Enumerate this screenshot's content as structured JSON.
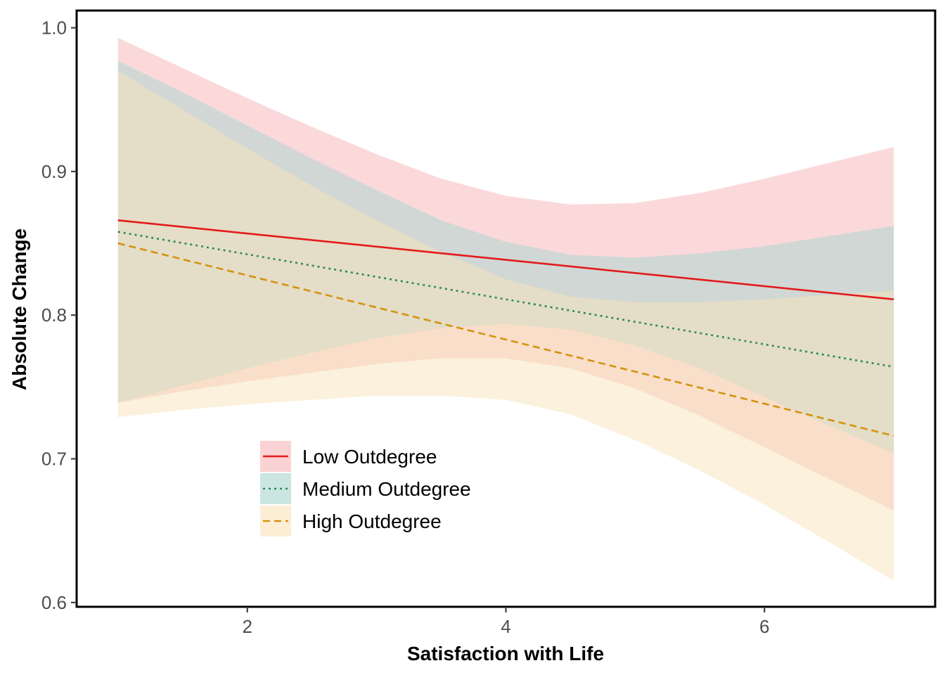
{
  "chart_data": {
    "type": "line",
    "title": "",
    "xlabel": "Satisfaction with Life",
    "ylabel": "Absolute Change",
    "xlim": [
      0.68,
      7.32
    ],
    "ylim": [
      0.597,
      1.012
    ],
    "xticks": [
      2,
      4,
      6
    ],
    "xtick_labels": [
      "2",
      "4",
      "6"
    ],
    "yticks": [
      0.6,
      0.7,
      0.8,
      0.9,
      1.0
    ],
    "ytick_labels": [
      "0.6",
      "0.7",
      "0.8",
      "0.9",
      "1.0"
    ],
    "grid": false,
    "legend_position": "bottom-left",
    "series": [
      {
        "name": "Low Outdegree",
        "color": "#e41a1c",
        "fill": "#f8b4b5",
        "dash": "solid",
        "x": [
          1,
          7
        ],
        "y": [
          0.866,
          0.811
        ],
        "ribbon_x": [
          1,
          1.5,
          2,
          2.5,
          3,
          3.5,
          4,
          4.5,
          5,
          5.5,
          6,
          6.5,
          7
        ],
        "ribbon_upper": [
          0.993,
          0.972,
          0.951,
          0.931,
          0.912,
          0.895,
          0.883,
          0.877,
          0.878,
          0.885,
          0.895,
          0.906,
          0.917
        ],
        "ribbon_lower": [
          0.739,
          0.747,
          0.754,
          0.76,
          0.766,
          0.77,
          0.77,
          0.763,
          0.749,
          0.73,
          0.708,
          0.686,
          0.664
        ]
      },
      {
        "name": "Medium Outdegree",
        "color": "#2e8b57",
        "fill": "#a8d5cd",
        "dash": "dotted",
        "x": [
          1,
          7
        ],
        "y": [
          0.858,
          0.764
        ],
        "ribbon_x": [
          1,
          1.5,
          2,
          2.5,
          3,
          3.5,
          4,
          4.5,
          5,
          5.5,
          6,
          6.5,
          7
        ],
        "ribbon_upper": [
          0.977,
          0.955,
          0.932,
          0.909,
          0.887,
          0.866,
          0.851,
          0.842,
          0.84,
          0.843,
          0.848,
          0.855,
          0.862
        ],
        "ribbon_lower": [
          0.739,
          0.751,
          0.763,
          0.774,
          0.784,
          0.791,
          0.794,
          0.79,
          0.779,
          0.763,
          0.743,
          0.723,
          0.704
        ]
      },
      {
        "name": "High Outdegree",
        "color": "#d4930f",
        "fill": "#f8e3b9",
        "dash": "dashed",
        "x": [
          1,
          7
        ],
        "y": [
          0.85,
          0.716
        ],
        "ribbon_x": [
          1,
          1.5,
          2,
          2.5,
          3,
          3.5,
          4,
          4.5,
          5,
          5.5,
          6,
          6.5,
          7
        ],
        "ribbon_upper": [
          0.97,
          0.943,
          0.916,
          0.89,
          0.866,
          0.844,
          0.825,
          0.813,
          0.809,
          0.809,
          0.811,
          0.814,
          0.817
        ],
        "ribbon_lower": [
          0.729,
          0.734,
          0.738,
          0.741,
          0.744,
          0.744,
          0.741,
          0.731,
          0.713,
          0.692,
          0.668,
          0.642,
          0.615
        ]
      }
    ]
  }
}
